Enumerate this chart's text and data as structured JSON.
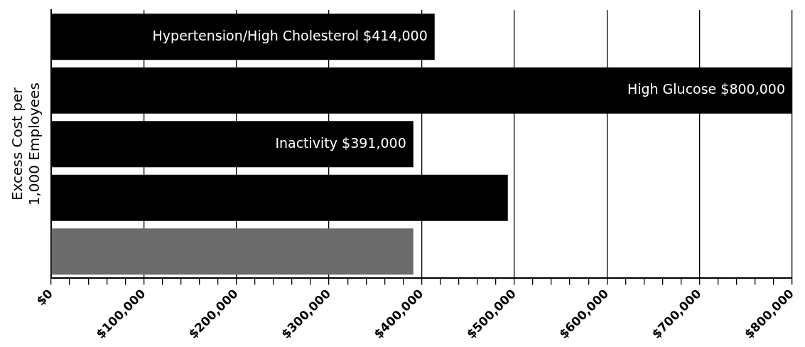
{
  "chart_data": {
    "type": "bar",
    "orientation": "horizontal",
    "ylabel": "Excess Cost per 1,000 Employees",
    "categories": [
      null,
      null,
      null,
      null,
      null
    ],
    "values": [
      414000,
      800000,
      391000,
      493000,
      391000
    ],
    "colors": [
      "#000000",
      "#000000",
      "#000000",
      "#000000",
      "#6b6b6b"
    ],
    "value_labels": [
      "Hypertension/High Cholesterol $414,000",
      "High Glucose $800,000",
      "Inactivity $391,000",
      null,
      null
    ],
    "xlim": [
      0,
      800000
    ],
    "xticks": [
      {
        "value": 0,
        "label": "$0"
      },
      {
        "value": 20000,
        "label": null
      },
      {
        "value": 40000,
        "label": null
      },
      {
        "value": 60000,
        "label": null
      },
      {
        "value": 80000,
        "label": null
      },
      {
        "value": 100000,
        "label": "$100,000"
      },
      {
        "value": 120000,
        "label": null
      },
      {
        "value": 140000,
        "label": null
      },
      {
        "value": 160000,
        "label": null
      },
      {
        "value": 180000,
        "label": null
      },
      {
        "value": 200000,
        "label": "$200,000"
      },
      {
        "value": 220000,
        "label": null
      },
      {
        "value": 240000,
        "label": null
      },
      {
        "value": 260000,
        "label": null
      },
      {
        "value": 280000,
        "label": null
      },
      {
        "value": 300000,
        "label": "$300,000"
      },
      {
        "value": 320000,
        "label": null
      },
      {
        "value": 340000,
        "label": null
      },
      {
        "value": 360000,
        "label": null
      },
      {
        "value": 380000,
        "label": null
      },
      {
        "value": 400000,
        "label": "$400,000"
      },
      {
        "value": 420000,
        "label": null
      },
      {
        "value": 440000,
        "label": null
      },
      {
        "value": 460000,
        "label": null
      },
      {
        "value": 480000,
        "label": null
      },
      {
        "value": 500000,
        "label": "$500,000"
      },
      {
        "value": 520000,
        "label": null
      },
      {
        "value": 540000,
        "label": null
      },
      {
        "value": 560000,
        "label": null
      },
      {
        "value": 580000,
        "label": null
      },
      {
        "value": 600000,
        "label": "$600,000"
      },
      {
        "value": 620000,
        "label": null
      },
      {
        "value": 640000,
        "label": null
      },
      {
        "value": 660000,
        "label": null
      },
      {
        "value": 680000,
        "label": null
      },
      {
        "value": 700000,
        "label": "$700,000"
      },
      {
        "value": 720000,
        "label": null
      },
      {
        "value": 740000,
        "label": null
      },
      {
        "value": 760000,
        "label": null
      },
      {
        "value": 780000,
        "label": null
      },
      {
        "value": 800000,
        "label": "$800,000"
      }
    ],
    "grid": "x",
    "legend": false
  }
}
